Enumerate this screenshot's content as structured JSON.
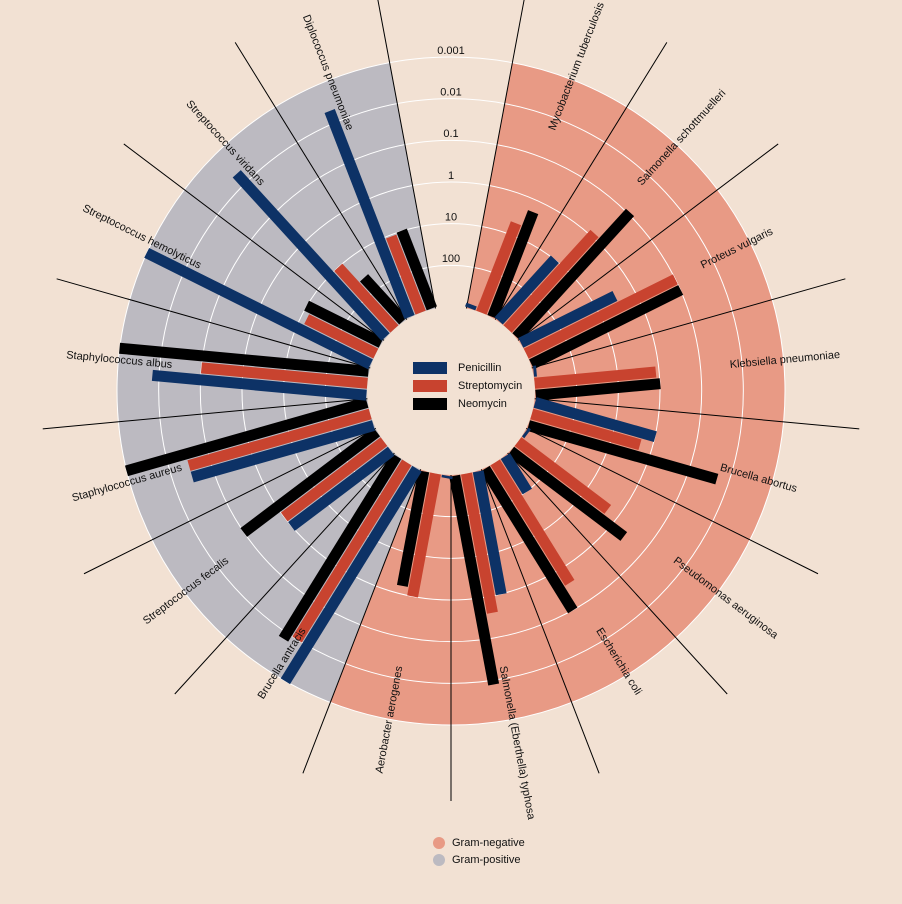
{
  "chart_data": {
    "type": "radial_bar",
    "categories": [
      "Mycobacterium tuberculosis",
      "Salmonella schottmuelleri",
      "Proteus vulgaris",
      "Klebsiella pneumoniae",
      "Brucella abortus",
      "Pseudomonas aeruginosa",
      "Escherichia coli",
      "Salmonella (Eberthella) typhosa",
      "Aerobacter aerogenes",
      "Brucella antracis",
      "Streptococcus fecalis",
      "Staphylococcus aureus",
      "Staphylococcus albus",
      "Streptococcus hemolyticus",
      "Streptococcus viridans",
      "Diplococcus pneumoniae"
    ],
    "series": [
      {
        "name": "Penicillin",
        "color": "#0d3266",
        "values": [
          800,
          10,
          3,
          850,
          1,
          850,
          100,
          1,
          870,
          0.001,
          1,
          0.03,
          0.007,
          0.001,
          0.005,
          0.005
        ]
      },
      {
        "name": "Streptomycin",
        "color": "#c8432f",
        "values": [
          5,
          0.8,
          0.1,
          1.2,
          2,
          2,
          0.4,
          0.4,
          1,
          0.01,
          1,
          0.03,
          0.1,
          14,
          10,
          11
        ]
      },
      {
        "name": "Neomycin",
        "color": "#000000",
        "values": [
          2,
          0.09,
          0.1,
          1,
          0.02,
          0.4,
          0.1,
          0.008,
          1.6,
          0.007,
          0.1,
          0.001,
          0.001,
          10,
          40,
          10
        ]
      }
    ],
    "groups": [
      {
        "name": "Gram-negative",
        "color": "#e89a85"
      },
      {
        "name": "Gram-positive",
        "color": "#bcbac1"
      }
    ],
    "category_group": [
      0,
      0,
      0,
      0,
      0,
      0,
      0,
      0,
      0,
      1,
      1,
      1,
      1,
      1,
      1,
      1
    ],
    "log_scale": true,
    "ylim": [
      1000,
      0.001
    ],
    "yticks": [
      0.001,
      0.01,
      0.1,
      1,
      10,
      100
    ],
    "grid": true
  }
}
